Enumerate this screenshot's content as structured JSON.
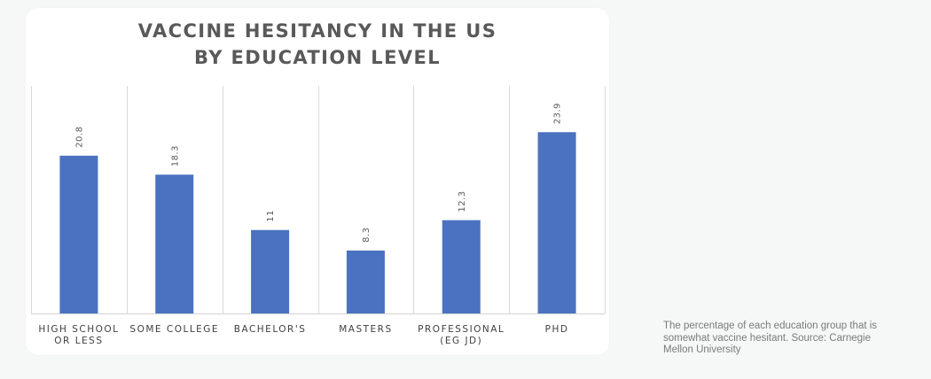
{
  "chart_data": {
    "type": "bar",
    "title_lines": [
      "VACCINE HESITANCY IN THE US",
      "BY EDUCATION LEVEL"
    ],
    "categories": [
      [
        "HIGH SCHOOL",
        "OR LESS"
      ],
      [
        "SOME COLLEGE"
      ],
      [
        "BACHELOR'S"
      ],
      [
        "MASTERS"
      ],
      [
        "PROFESSIONAL",
        "(EG JD)"
      ],
      [
        "PHD"
      ]
    ],
    "values": [
      20.8,
      18.3,
      11,
      8.3,
      12.3,
      23.9
    ],
    "value_labels": [
      "20.8",
      "18.3",
      "11",
      "8.3",
      "12.3",
      "23.9"
    ],
    "ylim": [
      0,
      30
    ],
    "xlabel": "",
    "ylabel": "",
    "grid": "vertical category separators",
    "legend": "none",
    "bar_color": "#4a72c0"
  },
  "caption": "The percentage of each education group that is somewhat vaccine hesitant. Source: Carnegie Mellon University"
}
